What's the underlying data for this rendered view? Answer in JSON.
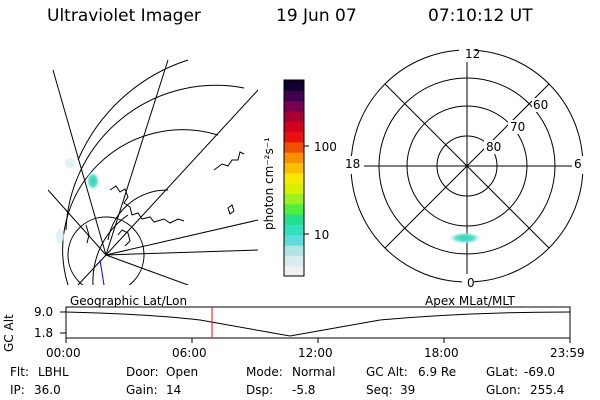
{
  "header": {
    "title": "Ultraviolet Imager",
    "date": "19 Jun 07",
    "time": "07:10:12 UT"
  },
  "colorbar": {
    "label": "photon cm⁻²s⁻¹",
    "ticks": [
      "100",
      "10"
    ],
    "colors": [
      "#f0f0f0",
      "#d8ecec",
      "#b0e4e4",
      "#60dcdc",
      "#30e0c0",
      "#20e090",
      "#50ee40",
      "#a0f020",
      "#d8f000",
      "#f8e800",
      "#f8c000",
      "#f89000",
      "#f05000",
      "#e81010",
      "#d00020",
      "#a80030",
      "#780050",
      "#400050",
      "#100030"
    ]
  },
  "left_map": {
    "label": "Geographic Lat/Lon"
  },
  "right_map": {
    "label": "Apex MLat/MLT",
    "mlt_labels": {
      "top": "12",
      "left": "18",
      "right": "6",
      "bottom": "0"
    },
    "lat_labels": [
      "60",
      "70",
      "80"
    ]
  },
  "timeline": {
    "ylabel": "GC Alt",
    "y_ticks": [
      "9.0",
      "1.8"
    ],
    "x_ticks": [
      "00:00",
      "06:00",
      "12:00",
      "18:00",
      "23:59"
    ],
    "current_marker_time": "07:10:12",
    "marker_color": "#ff0000"
  },
  "info": {
    "flt": {
      "label": "Flt:",
      "value": "LBHL"
    },
    "ip": {
      "label": "IP:",
      "value": "36.0"
    },
    "door": {
      "label": "Door:",
      "value": "Open"
    },
    "gain": {
      "label": "Gain:",
      "value": "14"
    },
    "mode": {
      "label": "Mode:",
      "value": "Normal"
    },
    "dsp": {
      "label": "Dsp:",
      "value": "-5.8"
    },
    "gcalt": {
      "label": "GC Alt:",
      "value": "6.9 Re"
    },
    "seq": {
      "label": "Seq:",
      "value": "39"
    },
    "glat": {
      "label": "GLat:",
      "value": "-69.0"
    },
    "glon": {
      "label": "GLon:",
      "value": "255.4"
    }
  }
}
